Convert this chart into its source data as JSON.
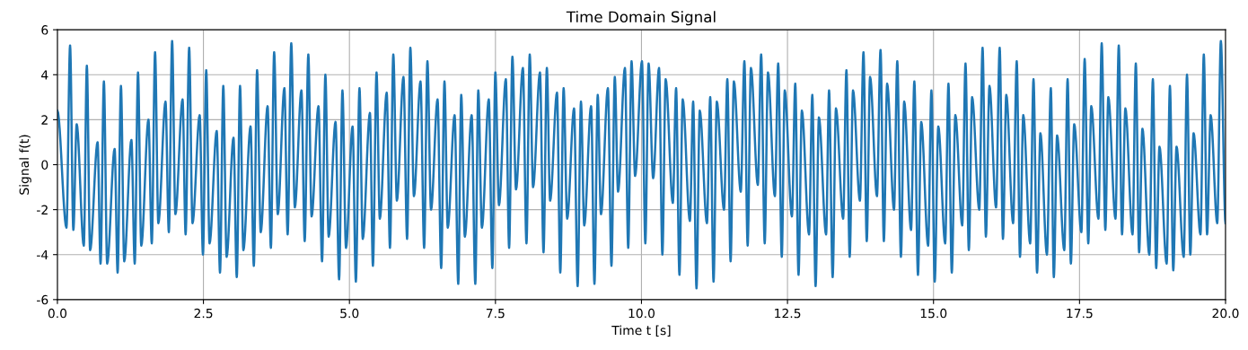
{
  "chart_data": {
    "type": "line",
    "title": "Time Domain Signal",
    "xlabel": "Time t [s]",
    "ylabel": "Signal f(t)",
    "xlim": [
      0,
      20
    ],
    "ylim": [
      -6,
      6
    ],
    "xticks": [
      {
        "value": 0,
        "label": "0.0"
      },
      {
        "value": 2.5,
        "label": "2.5"
      },
      {
        "value": 5,
        "label": "5.0"
      },
      {
        "value": 7.5,
        "label": "7.5"
      },
      {
        "value": 10,
        "label": "10.0"
      },
      {
        "value": 12.5,
        "label": "12.5"
      },
      {
        "value": 15,
        "label": "15.0"
      },
      {
        "value": 17.5,
        "label": "17.5"
      },
      {
        "value": 20,
        "label": "20.0"
      }
    ],
    "yticks": [
      -6,
      -4,
      -2,
      0,
      2,
      4,
      6
    ],
    "grid": true,
    "line_style": "solid",
    "marker": "none",
    "series": [
      {
        "color": "#1f77b4",
        "x": [
          0.0,
          0.155,
          0.217,
          0.273,
          0.33,
          0.452,
          0.504,
          0.56,
          0.688,
          0.739,
          0.796,
          0.852,
          0.98,
          1.031,
          1.088,
          1.144,
          1.267,
          1.324,
          1.38,
          1.436,
          1.559,
          1.616,
          1.672,
          1.728,
          1.851,
          1.908,
          1.964,
          2.02,
          2.143,
          2.195,
          2.256,
          2.313,
          2.436,
          2.492,
          2.548,
          2.605,
          2.728,
          2.784,
          2.84,
          2.897,
          3.015,
          3.071,
          3.127,
          3.184,
          3.307,
          3.363,
          3.419,
          3.481,
          3.599,
          3.655,
          3.711,
          3.773,
          3.886,
          3.942,
          4.004,
          4.065,
          4.178,
          4.234,
          4.296,
          4.352,
          4.47,
          4.531,
          4.588,
          4.644,
          4.762,
          4.823,
          4.88,
          4.941,
          5.054,
          5.11,
          5.172,
          5.228,
          5.351,
          5.402,
          5.464,
          5.52,
          5.638,
          5.694,
          5.751,
          5.812,
          5.925,
          5.987,
          6.043,
          6.104,
          6.217,
          6.279,
          6.335,
          6.397,
          6.509,
          6.571,
          6.627,
          6.683,
          6.801,
          6.863,
          6.914,
          6.976,
          7.093,
          7.155,
          7.206,
          7.268,
          7.386,
          7.447,
          7.498,
          7.56,
          7.678,
          7.734,
          7.79,
          7.852,
          7.97,
          8.031,
          8.087,
          8.144,
          8.262,
          8.323,
          8.38,
          8.436,
          8.554,
          8.61,
          8.667,
          8.728,
          8.846,
          8.907,
          8.964,
          9.02,
          9.138,
          9.195,
          9.251,
          9.307,
          9.425,
          9.486,
          9.543,
          9.599,
          9.717,
          9.773,
          9.83,
          9.891,
          10.009,
          10.066,
          10.122,
          10.2,
          10.301,
          10.358,
          10.414,
          10.537,
          10.593,
          10.65,
          10.706,
          10.829,
          10.885,
          10.942,
          10.998,
          11.121,
          11.177,
          11.234,
          11.29,
          11.413,
          11.47,
          11.526,
          11.582,
          11.7,
          11.762,
          11.818,
          11.874,
          11.992,
          12.049,
          12.11,
          12.166,
          12.284,
          12.341,
          12.402,
          12.453,
          12.576,
          12.633,
          12.689,
          12.746,
          12.869,
          12.925,
          12.981,
          13.038,
          13.161,
          13.212,
          13.273,
          13.33,
          13.453,
          13.509,
          13.565,
          13.622,
          13.74,
          13.801,
          13.857,
          13.914,
          14.032,
          14.093,
          14.15,
          14.206,
          14.324,
          14.38,
          14.442,
          14.498,
          14.616,
          14.672,
          14.734,
          14.79,
          14.908,
          14.964,
          15.021,
          15.082,
          15.2,
          15.256,
          15.313,
          15.374,
          15.492,
          15.548,
          15.605,
          15.661,
          15.784,
          15.84,
          15.897,
          15.958,
          16.071,
          16.133,
          16.189,
          16.246,
          16.363,
          16.425,
          16.481,
          16.537,
          16.655,
          16.712,
          16.773,
          16.83,
          16.942,
          17.009,
          17.06,
          17.116,
          17.239,
          17.296,
          17.352,
          17.409,
          17.532,
          17.588,
          17.65,
          17.701,
          17.824,
          17.88,
          17.942,
          17.993,
          18.116,
          18.172,
          18.228,
          18.285,
          18.408,
          18.464,
          18.52,
          18.577,
          18.695,
          18.756,
          18.813,
          18.869,
          18.992,
          19.048,
          19.105,
          19.161,
          19.284,
          19.34,
          19.397,
          19.453,
          19.571,
          19.628,
          19.684,
          19.745,
          19.858,
          19.92,
          20.0
        ],
        "values": [
          2.4,
          -2.8,
          5.3,
          -2.9,
          1.8,
          -3.6,
          4.4,
          -3.8,
          1.0,
          -4.4,
          3.7,
          -4.4,
          0.7,
          -4.8,
          3.5,
          -4.3,
          1.1,
          -4.4,
          4.1,
          -3.6,
          2.0,
          -3.5,
          5.0,
          -2.6,
          2.8,
          -3.0,
          5.5,
          -2.2,
          2.9,
          -3.1,
          5.2,
          -2.6,
          2.2,
          -4.0,
          4.2,
          -3.5,
          1.5,
          -4.8,
          3.5,
          -4.1,
          1.2,
          -5.0,
          3.5,
          -3.8,
          1.7,
          -4.5,
          4.2,
          -3.0,
          2.6,
          -3.7,
          5.0,
          -2.2,
          3.4,
          -3.1,
          5.4,
          -1.9,
          3.3,
          -3.4,
          4.9,
          -2.3,
          2.6,
          -4.3,
          4.0,
          -3.2,
          1.9,
          -5.1,
          3.3,
          -3.7,
          1.7,
          -5.2,
          3.4,
          -3.3,
          2.3,
          -4.5,
          4.1,
          -2.4,
          3.2,
          -3.7,
          4.9,
          -1.6,
          3.9,
          -3.3,
          5.2,
          -1.4,
          3.7,
          -3.7,
          4.6,
          -2.0,
          2.9,
          -4.6,
          3.7,
          -2.8,
          2.2,
          -5.3,
          3.1,
          -3.2,
          2.2,
          -5.3,
          3.3,
          -2.8,
          2.9,
          -4.6,
          4.1,
          -1.8,
          3.8,
          -3.7,
          4.8,
          -1.1,
          4.3,
          -3.5,
          4.9,
          -1.0,
          4.1,
          -3.9,
          4.3,
          -1.6,
          3.2,
          -4.8,
          3.4,
          -2.4,
          2.5,
          -5.4,
          2.8,
          -2.7,
          2.6,
          -5.3,
          3.1,
          -2.2,
          3.4,
          -4.5,
          3.9,
          -1.2,
          4.3,
          -3.7,
          4.6,
          -0.5,
          4.6,
          -3.5,
          4.5,
          -0.6,
          4.3,
          -4.0,
          3.8,
          -1.7,
          3.4,
          -4.9,
          2.9,
          -2.5,
          2.8,
          -5.5,
          2.4,
          -2.6,
          3.0,
          -5.2,
          2.8,
          -2.0,
          3.8,
          -4.3,
          3.7,
          -1.2,
          4.6,
          -3.6,
          4.3,
          -0.9,
          4.9,
          -3.5,
          4.1,
          -1.4,
          4.5,
          -4.1,
          3.3,
          -2.3,
          3.6,
          -4.9,
          2.4,
          -3.1,
          3.1,
          -5.4,
          2.1,
          -3.1,
          3.3,
          -5.0,
          2.5,
          -2.4,
          4.2,
          -4.1,
          3.3,
          -1.6,
          5.0,
          -3.4,
          3.9,
          -1.4,
          5.1,
          -3.4,
          3.6,
          -2.0,
          4.6,
          -4.1,
          2.8,
          -2.9,
          3.7,
          -4.9,
          1.9,
          -3.6,
          3.3,
          -5.2,
          1.7,
          -3.5,
          3.6,
          -4.8,
          2.2,
          -2.7,
          4.5,
          -3.8,
          3.0,
          -2.0,
          5.2,
          -3.2,
          3.5,
          -1.9,
          5.2,
          -3.3,
          3.1,
          -2.6,
          4.6,
          -4.1,
          2.2,
          -3.5,
          3.8,
          -4.8,
          1.4,
          -4.0,
          3.4,
          -5.0,
          1.3,
          -3.8,
          3.8,
          -4.4,
          1.8,
          -3.0,
          4.7,
          -3.5,
          2.6,
          -2.4,
          5.4,
          -2.9,
          3.0,
          -2.4,
          5.3,
          -3.1,
          2.5,
          -3.1,
          4.5,
          -3.9,
          1.6,
          -4.0,
          3.8,
          -4.6,
          0.8,
          -4.4,
          3.5,
          -4.7,
          0.8,
          -4.1,
          4.0,
          -4.0,
          1.4,
          -3.1,
          4.9,
          -3.1,
          2.2,
          -2.6,
          5.5,
          -2.6
        ]
      }
    ]
  }
}
